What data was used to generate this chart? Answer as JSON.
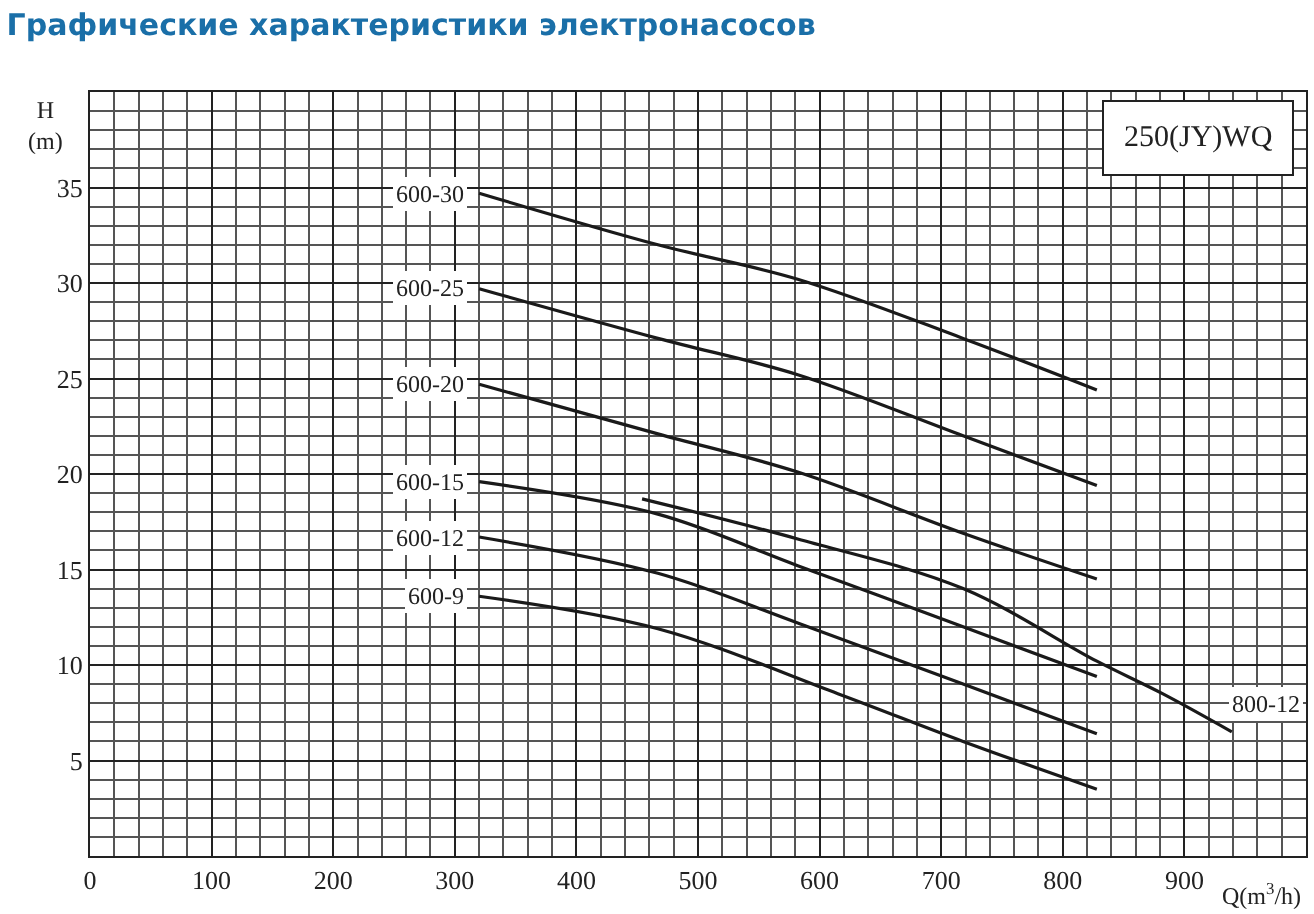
{
  "chart_data": {
    "type": "line",
    "title": "Графические характеристики электронасосов",
    "xlabel": "Q(m$^{3}$/h)",
    "ylabel": "H\n(m)",
    "annotations": [
      "250(JY)WQ"
    ],
    "xlim": [
      0,
      1000
    ],
    "xticks": [
      0,
      100,
      200,
      300,
      400,
      500,
      600,
      700,
      800,
      900
    ],
    "ylim": [
      0,
      40
    ],
    "yticks": [
      5,
      10,
      15,
      20,
      25,
      30,
      35
    ],
    "grid": true,
    "legend": false,
    "marker": "none",
    "line_style": "solid",
    "series": [
      {
        "name": "600-30",
        "color": "#1a1a1a",
        "x": [
          320,
          467,
          582,
          718,
          828
        ],
        "values": [
          34.7,
          32.0,
          30.2,
          27.1,
          24.4
        ]
      },
      {
        "name": "600-25",
        "color": "#1a1a1a",
        "x": [
          320,
          467,
          582,
          718,
          828
        ],
        "values": [
          29.7,
          27.1,
          25.2,
          22.0,
          19.4
        ]
      },
      {
        "name": "600-20",
        "color": "#1a1a1a",
        "x": [
          320,
          467,
          582,
          718,
          828
        ],
        "values": [
          24.7,
          22.1,
          20.1,
          16.9,
          14.5
        ]
      },
      {
        "name": "600-15",
        "color": "#1a1a1a",
        "x": [
          320,
          467,
          582,
          718,
          828
        ],
        "values": [
          19.6,
          17.9,
          15.2,
          12.0,
          9.4
        ]
      },
      {
        "name": "600-12",
        "color": "#1a1a1a",
        "x": [
          320,
          467,
          582,
          718,
          828
        ],
        "values": [
          16.7,
          14.8,
          12.2,
          9.0,
          6.4
        ]
      },
      {
        "name": "600-9",
        "color": "#1a1a1a",
        "x": [
          320,
          467,
          615,
          718,
          828
        ],
        "values": [
          13.6,
          11.9,
          8.5,
          6.0,
          3.5
        ]
      },
      {
        "name": "800-12",
        "color": "#1a1a1a",
        "x": [
          454,
          582,
          718,
          828,
          882,
          939
        ],
        "values": [
          18.7,
          16.6,
          14.0,
          10.2,
          8.5,
          6.5
        ]
      }
    ]
  }
}
